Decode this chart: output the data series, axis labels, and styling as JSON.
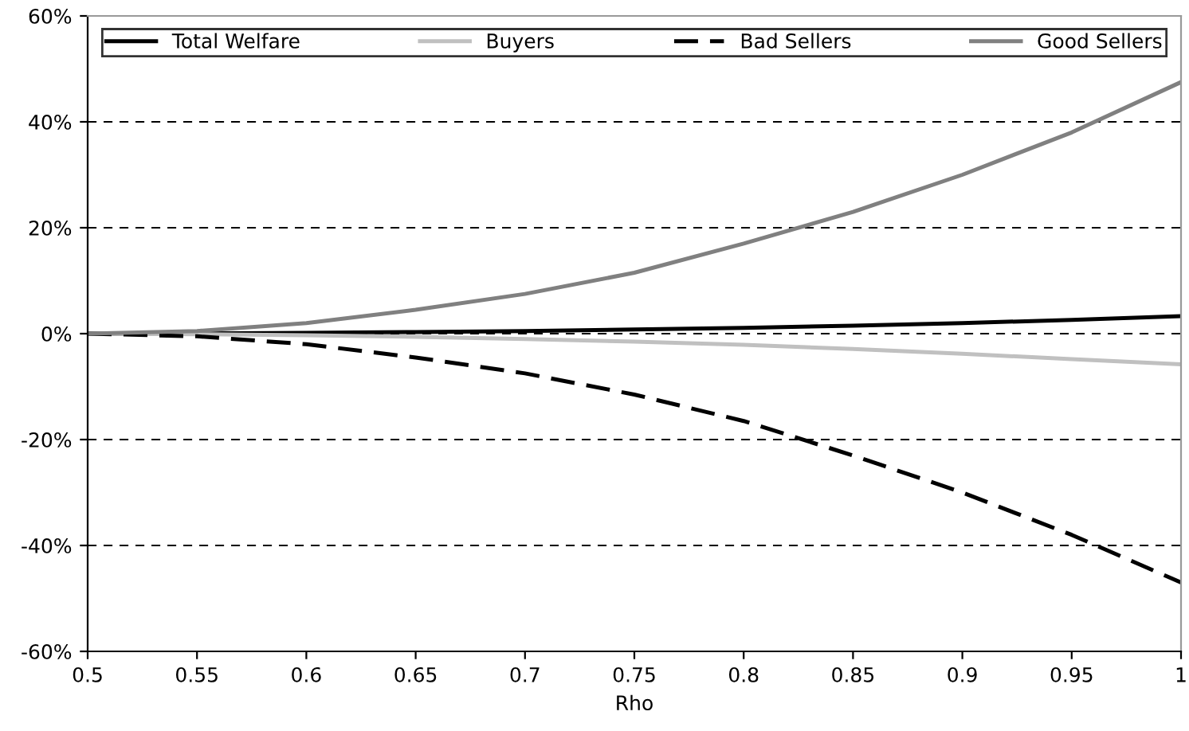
{
  "chart_data": {
    "type": "line",
    "xlabel": "Rho",
    "x": [
      0.5,
      0.55,
      0.6,
      0.65,
      0.7,
      0.75,
      0.8,
      0.85,
      0.9,
      0.95,
      1.0
    ],
    "series": [
      {
        "name": "Total Welfare",
        "color": "#000000",
        "line_style": "solid",
        "values": [
          0,
          0.05,
          0.15,
          0.3,
          0.5,
          0.8,
          1.1,
          1.5,
          2.0,
          2.6,
          3.3
        ]
      },
      {
        "name": "Buyers",
        "color": "#c0c0c0",
        "line_style": "solid",
        "values": [
          0,
          -0.1,
          -0.3,
          -0.6,
          -1.0,
          -1.5,
          -2.1,
          -2.9,
          -3.8,
          -4.8,
          -5.8
        ]
      },
      {
        "name": "Bad Sellers",
        "color": "#000000",
        "line_style": "dashed",
        "values": [
          0,
          -0.5,
          -2,
          -4.5,
          -7.5,
          -11.5,
          -16.5,
          -23,
          -30,
          -38,
          -47
        ]
      },
      {
        "name": "Good Sellers",
        "color": "#808080",
        "line_style": "solid",
        "values": [
          0,
          0.5,
          2,
          4.5,
          7.5,
          11.5,
          17,
          23,
          30,
          38,
          47.5
        ]
      }
    ],
    "xlim": [
      0.5,
      1.0
    ],
    "xticks": [
      0.5,
      0.55,
      0.6,
      0.65,
      0.7,
      0.75,
      0.8,
      0.85,
      0.9,
      0.95,
      {
        "value": 1.0,
        "label": "1"
      }
    ],
    "ylim": [
      -60,
      60
    ],
    "yticks": [
      {
        "value": -60,
        "label": "-60%"
      },
      {
        "value": -40,
        "label": "-40%"
      },
      {
        "value": -20,
        "label": "-20%"
      },
      {
        "value": 0,
        "label": "0%"
      },
      {
        "value": 20,
        "label": "20%"
      },
      {
        "value": 40,
        "label": "40%"
      },
      {
        "value": 60,
        "label": "60%"
      }
    ],
    "grid": "y",
    "legend": "top",
    "marker": "none"
  }
}
